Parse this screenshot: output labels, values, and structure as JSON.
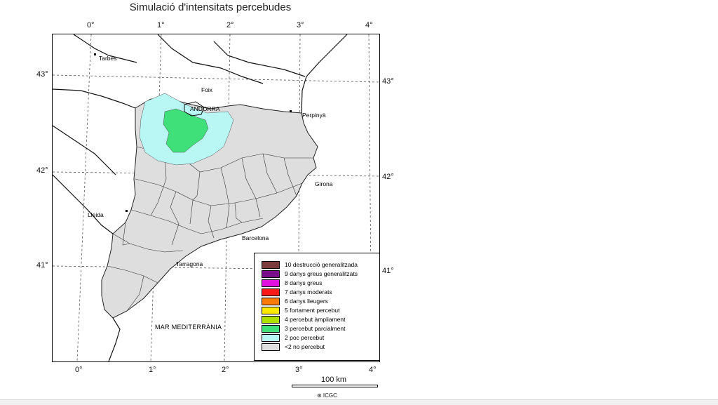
{
  "title": "Simulació d'intensitats percebudes",
  "lon_ticks_top": [
    "0°",
    "1°",
    "2°",
    "3°",
    "4°"
  ],
  "lon_ticks_bottom": [
    "0°",
    "1°",
    "2°",
    "3°",
    "4°"
  ],
  "lat_ticks_left": [
    "43°",
    "42°",
    "41°"
  ],
  "lat_ticks_right": [
    "43°",
    "42°",
    "41°"
  ],
  "cities": [
    "Tarbes",
    "Foix",
    "ANDORRA",
    "Perpinyà",
    "Girona",
    "Lleida",
    "Barcelona",
    "Tarragona"
  ],
  "sea_label": "MAR MEDITERRÀNIA",
  "legend": [
    {
      "label": "10 destrucció generalitzada",
      "color": "#7a3b3b"
    },
    {
      "label": "9 danys greus generalitzats",
      "color": "#7a0d8a"
    },
    {
      "label": "8 danys greus",
      "color": "#e010e0"
    },
    {
      "label": "7 danys moderats",
      "color": "#ff1a1a"
    },
    {
      "label": "6 danys lleugers",
      "color": "#ff7a00"
    },
    {
      "label": "5 fortament percebut",
      "color": "#ffe800"
    },
    {
      "label": "4 percebut àmpliament",
      "color": "#aee000"
    },
    {
      "label": "3 percebut parcialment",
      "color": "#3fe07a"
    },
    {
      "label": "2 poc percebut",
      "color": "#b8f7f3"
    },
    {
      "label": "<2 no percebut",
      "color": "#dedede"
    }
  ],
  "scale_label": "100 km",
  "credit": "⊛ ICGC"
}
